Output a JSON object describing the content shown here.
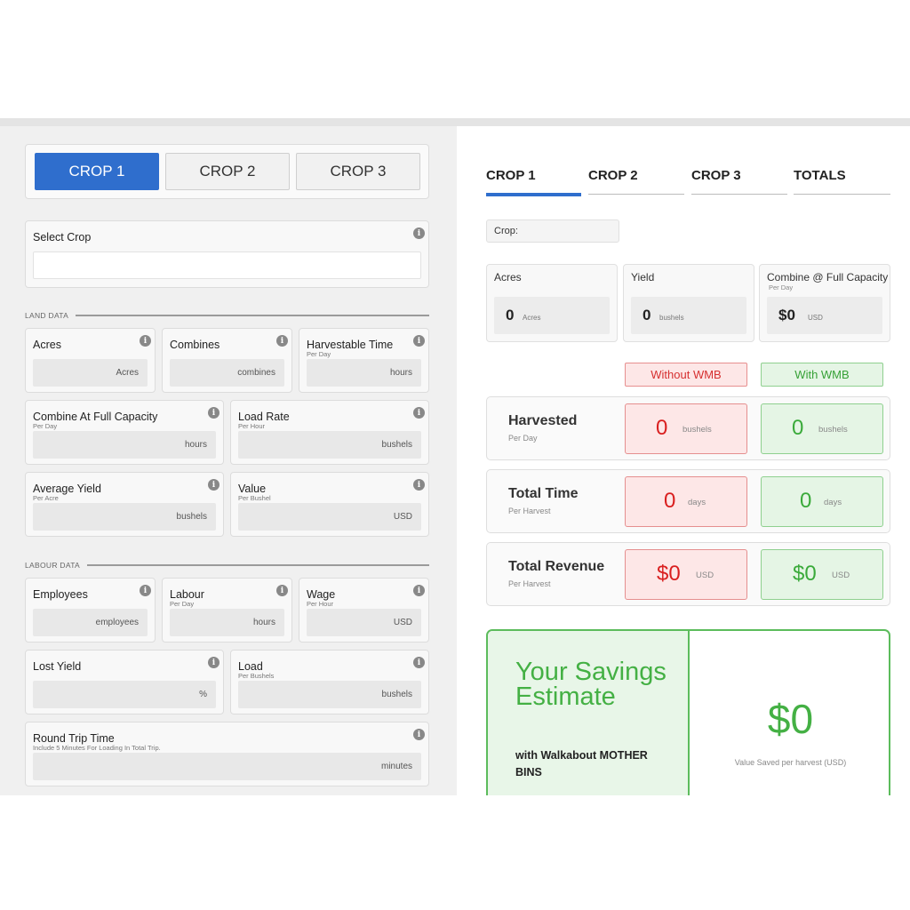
{
  "crop_tabs": [
    "CROP 1",
    "CROP 2",
    "CROP 3"
  ],
  "select_crop": {
    "label": "Select Crop",
    "value": ""
  },
  "land_data": {
    "title": "LAND DATA",
    "acres": {
      "label": "Acres",
      "sub": "",
      "unit": "Acres"
    },
    "combines": {
      "label": "Combines",
      "sub": "",
      "unit": "combines"
    },
    "harvestable_time": {
      "label": "Harvestable Time",
      "sub": "Per Day",
      "unit": "hours"
    },
    "combine_capacity": {
      "label": "Combine At Full Capacity",
      "sub": "Per Day",
      "unit": "hours"
    },
    "load_rate": {
      "label": "Load Rate",
      "sub": "Per Hour",
      "unit": "bushels"
    },
    "average_yield": {
      "label": "Average Yield",
      "sub": "Per Acre",
      "unit": "bushels"
    },
    "value": {
      "label": "Value",
      "sub": "Per Bushel",
      "unit": "USD"
    }
  },
  "labour_data": {
    "title": "LABOUR DATA",
    "employees": {
      "label": "Employees",
      "sub": "",
      "unit": "employees"
    },
    "labour": {
      "label": "Labour",
      "sub": "Per Day",
      "unit": "hours"
    },
    "wage": {
      "label": "Wage",
      "sub": "Per Hour",
      "unit": "USD"
    },
    "lost_yield": {
      "label": "Lost Yield",
      "sub": "",
      "unit": "%"
    },
    "load": {
      "label": "Load",
      "sub": "Per Bushels",
      "unit": "bushels"
    },
    "round_trip": {
      "label": "Round Trip Time",
      "sub": "Include 5 Minutes For Loading In Total Trip.",
      "unit": "minutes"
    }
  },
  "result_tabs": [
    "CROP 1",
    "CROP 2",
    "CROP 3",
    "TOTALS"
  ],
  "crop_field": "Crop:",
  "summary": {
    "acres": {
      "label": "Acres",
      "sub": "",
      "value": "0",
      "unit": "Acres"
    },
    "yield": {
      "label": "Yield",
      "sub": "",
      "value": "0",
      "unit": "bushels"
    },
    "combine": {
      "label": "Combine @ Full Capacity",
      "sub": "Per Day",
      "value": "$0",
      "unit": "USD"
    }
  },
  "comparison": {
    "without": "Without WMB",
    "with": "With WMB"
  },
  "rows": [
    {
      "label": "Harvested",
      "sub": "Per Day",
      "without_value": "0",
      "without_unit": "bushels",
      "with_value": "0",
      "with_unit": "bushels"
    },
    {
      "label": "Total Time",
      "sub": "Per Harvest",
      "without_value": "0",
      "without_unit": "days",
      "with_value": "0",
      "with_unit": "days"
    },
    {
      "label": "Total Revenue",
      "sub": "Per Harvest",
      "without_value": "$0",
      "without_unit": "USD",
      "with_value": "$0",
      "with_unit": "USD"
    }
  ],
  "savings": {
    "title": "Your Savings Estimate",
    "with_text": "with Walkabout MOTHER BINS",
    "value": "$0",
    "value_label": "Value Saved per harvest (USD)"
  },
  "icons": {
    "info": "info-icon"
  },
  "colors": {
    "primary": "#2f6ecd",
    "without": "#d91f1f",
    "with": "#3aaa3a"
  }
}
